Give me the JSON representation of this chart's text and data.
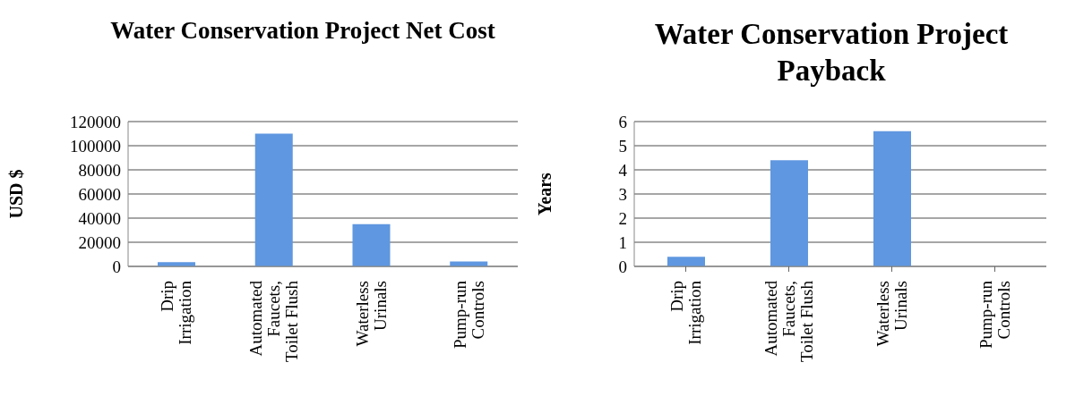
{
  "chart_data": [
    {
      "type": "bar",
      "title": "Water Conservation Project Net Cost",
      "ylabel": "USD $",
      "categories": [
        "Drip Irrigation",
        "Automated Faucets, Toilet Flush",
        "Waterless Urinals",
        "Pump-run Controls"
      ],
      "values": [
        3500,
        110000,
        35000,
        4000
      ],
      "color": "#5f97e0",
      "ylim": [
        0,
        120000
      ],
      "yticks": [
        0,
        20000,
        40000,
        60000,
        80000,
        100000,
        120000
      ],
      "grid": "y"
    },
    {
      "type": "bar",
      "title": "Water Conservation Project Payback",
      "ylabel": "Years",
      "categories": [
        "Drip Irrigation",
        "Automated Faucets, Toilet Flush",
        "Waterless Urinals",
        "Pump-run Controls"
      ],
      "values": [
        0.4,
        4.4,
        5.6,
        0
      ],
      "color": "#5f97e0",
      "ylim": [
        0,
        6
      ],
      "yticks": [
        0,
        1,
        2,
        3,
        4,
        5,
        6
      ],
      "grid": "y"
    }
  ]
}
